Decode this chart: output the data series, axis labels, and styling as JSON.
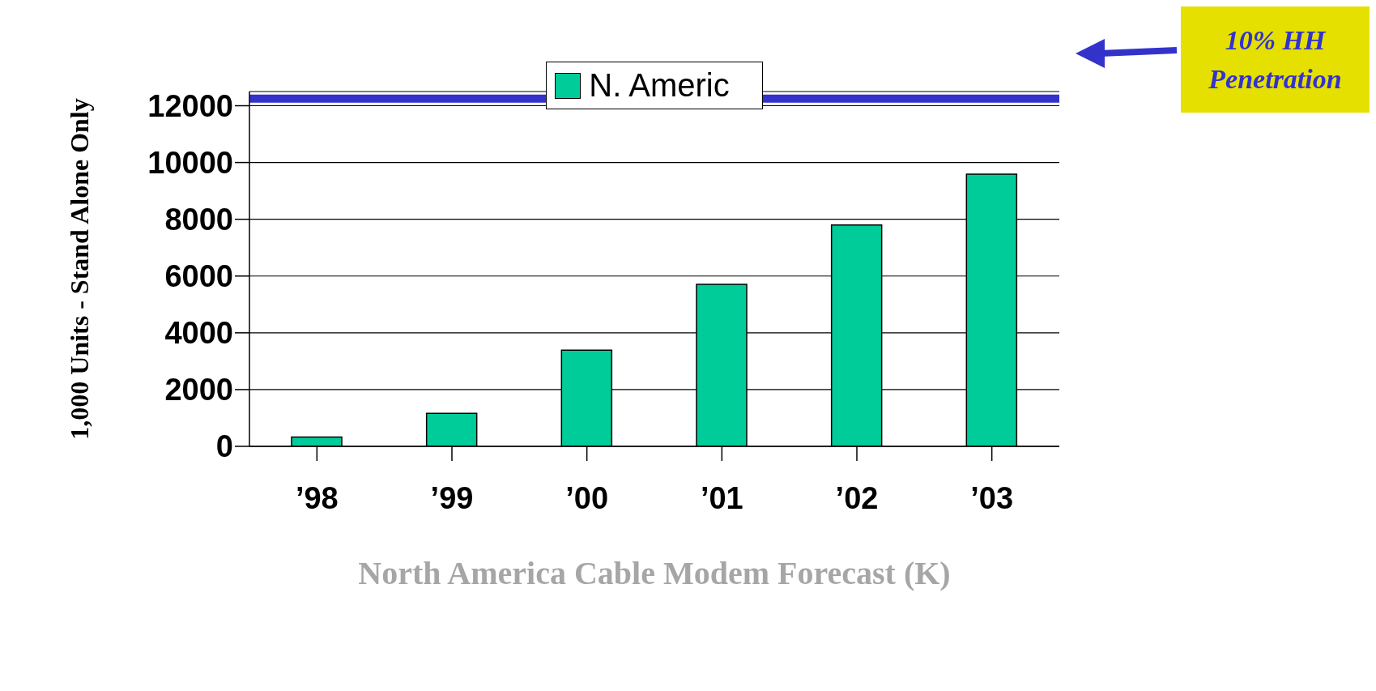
{
  "chart_data": {
    "type": "bar",
    "xlabel": "North America Cable Modem Forecast (K)",
    "ylabel": "1,000 Units - Stand Alone Only",
    "categories": [
      "’98",
      "’99",
      "’00",
      "’01",
      "’02",
      "’03"
    ],
    "series": [
      {
        "name": "N. Americ",
        "color": "#00cc99",
        "values": [
          330,
          1160,
          3390,
          5710,
          7800,
          9590
        ]
      }
    ],
    "ylim": [
      0,
      12500
    ],
    "yticks": [
      0,
      2000,
      4000,
      6000,
      8000,
      10000,
      12000
    ],
    "grid": "y",
    "legend": "top",
    "ref_lines": [
      {
        "axis": "y",
        "value": 12250,
        "label": "10% HH Penetration",
        "color": "#3333cc"
      }
    ]
  }
}
